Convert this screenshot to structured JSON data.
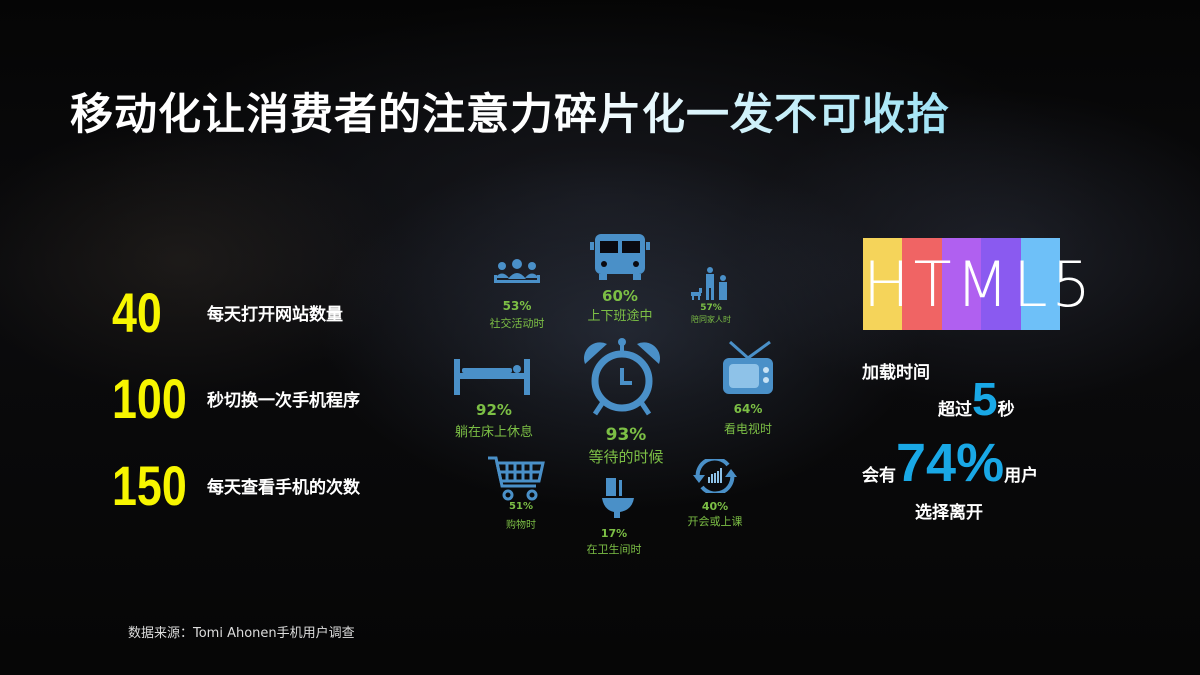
{
  "title": "移动化让消费者的注意力碎片化一发不可收拾",
  "stats": [
    {
      "number": "40",
      "label": "每天打开网站数量"
    },
    {
      "number": "100",
      "label": "秒切换一次手机程序"
    },
    {
      "number": "150",
      "label": "每天查看手机的次数"
    }
  ],
  "scenarios": [
    {
      "icon": "people-icon",
      "percent": "53%",
      "label": "社交活动时"
    },
    {
      "icon": "bus-icon",
      "percent": "60%",
      "label": "上下班途中"
    },
    {
      "icon": "family-icon",
      "percent": "57%",
      "label": "陪同家人时"
    },
    {
      "icon": "bed-icon",
      "percent": "92%",
      "label": "躺在床上休息"
    },
    {
      "icon": "alarm-clock-icon",
      "percent": "93%",
      "label": "等待的时候"
    },
    {
      "icon": "tv-icon",
      "percent": "64%",
      "label": "看电视时"
    },
    {
      "icon": "shopping-cart-icon",
      "percent": "51%",
      "label": "购物时"
    },
    {
      "icon": "toilet-icon",
      "percent": "17%",
      "label": "在卫生间时"
    },
    {
      "icon": "sync-chart-icon",
      "percent": "40%",
      "label": "开会或上课"
    }
  ],
  "html5": {
    "logo_text": "HTML5",
    "logo_colors": [
      "#f5d45a",
      "#f06464",
      "#b060f0",
      "#8a5af0",
      "#6ec0f8"
    ],
    "line1": "加载时间",
    "line2_prefix": "超过",
    "line2_value": "5",
    "line2_suffix": "秒",
    "line3_prefix": "会有",
    "line3_value": "74%",
    "line3_suffix": "用户",
    "line4": "选择离开"
  },
  "source": "数据来源：Tomi Ahonen手机用户调查",
  "colors": {
    "icon": "#4a90c8",
    "text_green": "#7cbf45",
    "stat_yellow": "#f7f500",
    "accent_blue": "#19a8e6"
  }
}
